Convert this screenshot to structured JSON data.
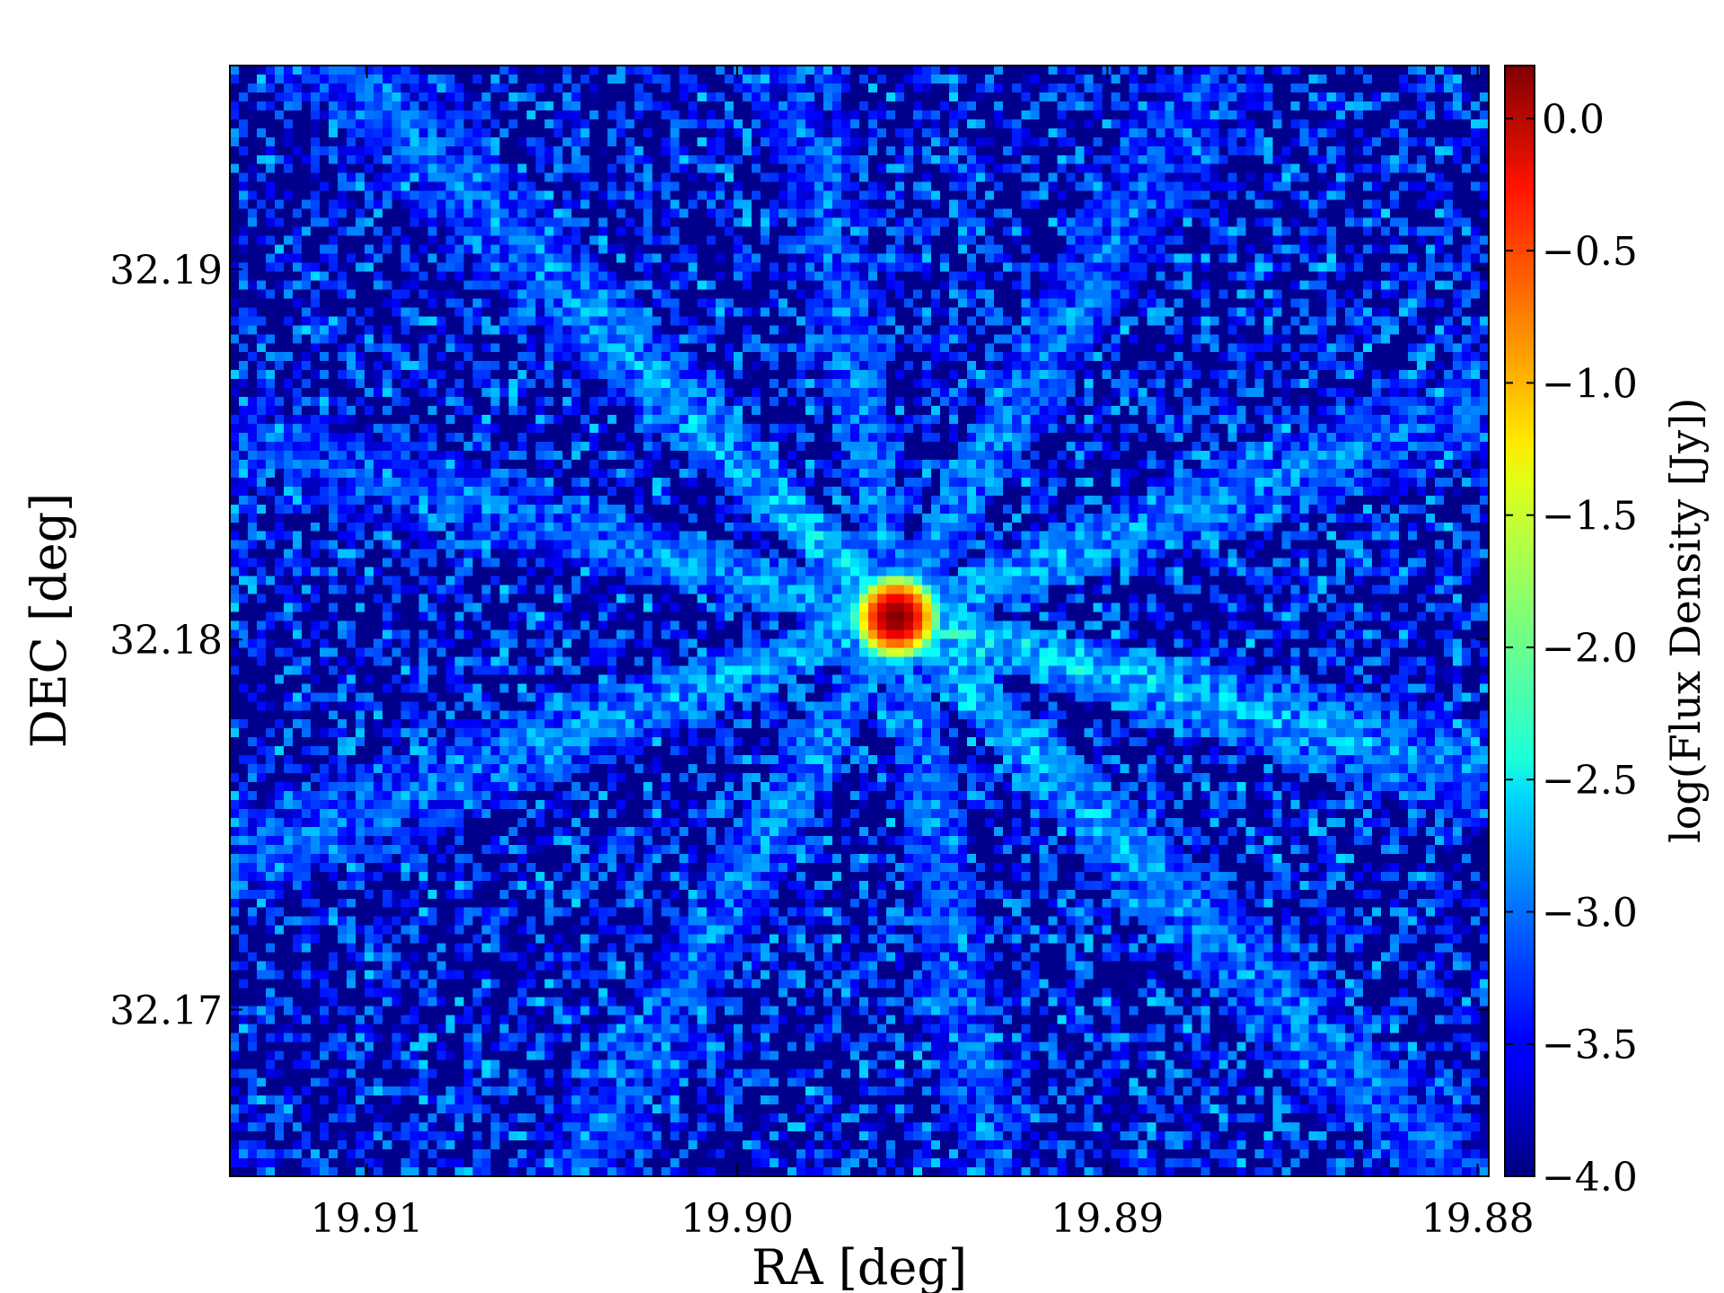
{
  "chart_data": {
    "type": "heatmap",
    "title": "",
    "xlabel": "RA [deg]",
    "ylabel": "DEC [deg]",
    "x_reversed": true,
    "xlim": [
      19.9137,
      19.8797
    ],
    "ylim": [
      32.1655,
      32.1955
    ],
    "x_ticks": [
      19.91,
      19.9,
      19.89,
      19.88
    ],
    "x_tick_labels": [
      "19.91",
      "19.90",
      "19.89",
      "19.88"
    ],
    "y_ticks": [
      32.17,
      32.18,
      32.19
    ],
    "y_tick_labels": [
      "32.17",
      "32.18",
      "32.19"
    ],
    "grid": false,
    "colorbar": {
      "label": "log(Flux Density [Jy])",
      "colormap": "jet",
      "range": [
        -4.0,
        0.2
      ],
      "ticks": [
        0.0,
        -0.5,
        -1.0,
        -1.5,
        -2.0,
        -2.5,
        -3.0,
        -3.5,
        -4.0
      ],
      "tick_labels": [
        "0.0",
        "−0.5",
        "−1.0",
        "−1.5",
        "−2.0",
        "−2.5",
        "−3.0",
        "−3.5",
        "−4.0"
      ]
    },
    "source": {
      "ra": 19.8957,
      "dec": 32.1806,
      "peak_log_flux": 0.2
    },
    "background_log_flux": -4.0,
    "pixel_grid": [
      140,
      124
    ],
    "streaks": [
      {
        "angle_deg": 135,
        "peak_log_flux": -2.6
      },
      {
        "angle_deg": -45,
        "peak_log_flux": -2.6
      },
      {
        "angle_deg": 60,
        "peak_log_flux": -2.8
      },
      {
        "angle_deg": -120,
        "peak_log_flux": -2.8
      },
      {
        "angle_deg": 20,
        "peak_log_flux": -2.7
      },
      {
        "angle_deg": -160,
        "peak_log_flux": -2.7
      },
      {
        "angle_deg": -15,
        "peak_log_flux": -2.5
      },
      {
        "angle_deg": 165,
        "peak_log_flux": -2.8
      },
      {
        "angle_deg": 100,
        "peak_log_flux": -2.9
      },
      {
        "angle_deg": -80,
        "peak_log_flux": -2.9
      }
    ]
  }
}
